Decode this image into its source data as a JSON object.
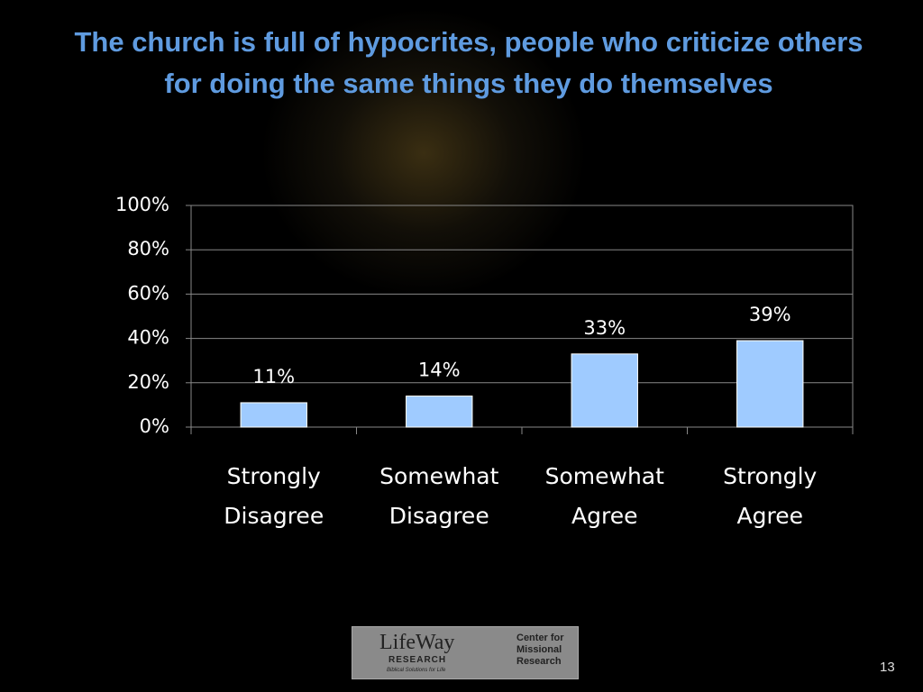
{
  "chart_data": {
    "type": "bar",
    "title": "The church is full of hypocrites, people who criticize others for doing the same things they do themselves",
    "categories": [
      "Strongly Disagree",
      "Somewhat Disagree",
      "Somewhat Agree",
      "Strongly Agree"
    ],
    "values": [
      11,
      14,
      33,
      39
    ],
    "value_labels": [
      "11%",
      "14%",
      "33%",
      "39%"
    ],
    "color": "#9fcbff",
    "ylim": [
      0,
      100
    ],
    "yticks": [
      {
        "value": 0,
        "label": "0%"
      },
      {
        "value": 20,
        "label": "20%"
      },
      {
        "value": 40,
        "label": "40%"
      },
      {
        "value": 60,
        "label": "60%"
      },
      {
        "value": 80,
        "label": "80%"
      },
      {
        "value": 100,
        "label": "100%"
      }
    ],
    "grid": true
  },
  "footer": {
    "logo_left": "LifeWay",
    "logo_left_sub": "RESEARCH",
    "logo_left_tagline": "Biblical Solutions for Life",
    "logo_right": "Center for Missional Research",
    "page_number": "13"
  }
}
